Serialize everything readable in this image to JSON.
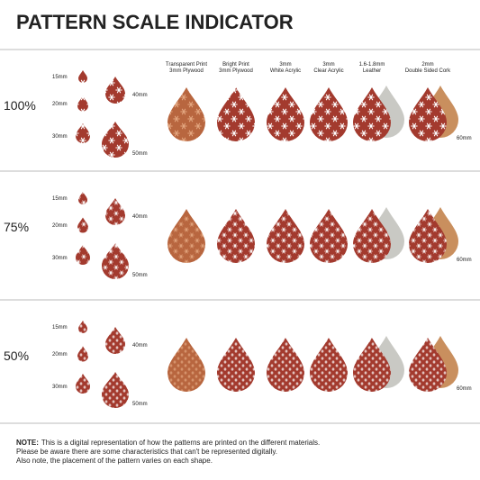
{
  "header": {
    "title": "PATTERN SCALE INDICATOR"
  },
  "materials": [
    {
      "line1": "Transparent Print",
      "line2": "3mm Plywood"
    },
    {
      "line1": "Bright Print",
      "line2": "3mm Plywood"
    },
    {
      "line1": "3mm",
      "line2": "White Acrylic"
    },
    {
      "line1": "3mm",
      "line2": "Clear Acrylic"
    },
    {
      "line1": "1.6-1.8mm",
      "line2": "Leather"
    },
    {
      "line1": "2mm",
      "line2": "Double Sided Cork"
    }
  ],
  "rows": [
    {
      "scale": "100%",
      "sizes": [
        "15mm",
        "20mm",
        "30mm",
        "40mm",
        "50mm"
      ],
      "material_size": "60mm"
    },
    {
      "scale": "75%",
      "sizes": [
        "15mm",
        "20mm",
        "30mm",
        "40mm",
        "50mm"
      ],
      "material_size": "60mm"
    },
    {
      "scale": "50%",
      "sizes": [
        "15mm",
        "20mm",
        "30mm",
        "40mm",
        "50mm"
      ],
      "material_size": "60mm"
    }
  ],
  "note": {
    "label": "NOTE:",
    "lines": [
      "This is a digital representation of how the patterns are printed on the different materials.",
      "Please be aware there are some characteristics that can't be represented digitally.",
      "Also note, the placement of the pattern varies on each shape."
    ]
  }
}
